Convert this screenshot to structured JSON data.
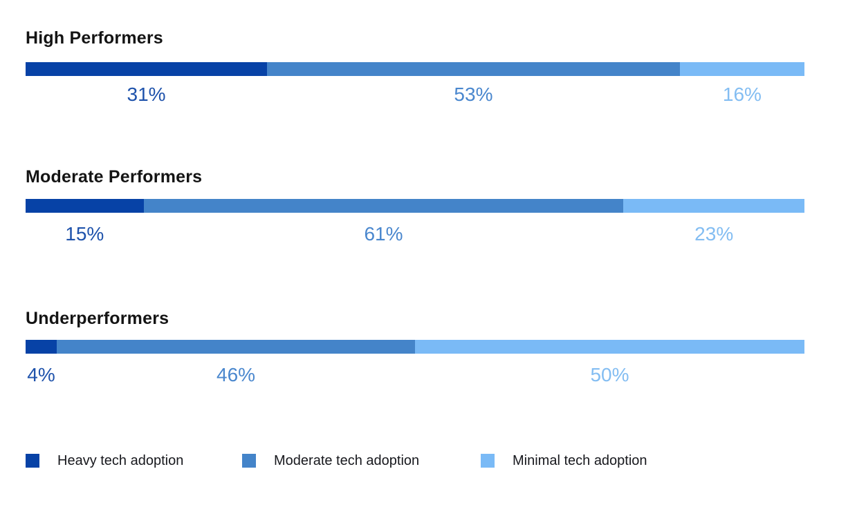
{
  "chart_data": {
    "type": "bar",
    "variant": "horizontal-stacked",
    "unit": "%",
    "title": "",
    "grid": false,
    "legend_position": "bottom",
    "categories": [
      "High Performers",
      "Moderate Performers",
      "Underperformers"
    ],
    "series": [
      {
        "name": "Heavy tech adoption",
        "color": "#0742A6",
        "label_color": "#1E52AB",
        "values": [
          31,
          15,
          4
        ]
      },
      {
        "name": "Moderate tech adoption",
        "color": "#4484C9",
        "label_color": "#4A87CE",
        "values": [
          53,
          61,
          46
        ]
      },
      {
        "name": "Minimal tech adoption",
        "color": "#7ABAF6",
        "label_color": "#83BDF2",
        "values": [
          16,
          23,
          50
        ]
      }
    ],
    "rows": [
      {
        "title": "High Performers",
        "values": [
          31,
          53,
          16
        ],
        "labels": [
          "31%",
          "53%",
          "16%"
        ]
      },
      {
        "title": "Moderate Performers",
        "values": [
          15,
          61,
          23
        ],
        "labels": [
          "15%",
          "61%",
          "23%"
        ]
      },
      {
        "title": "Underperformers",
        "values": [
          4,
          46,
          50
        ],
        "labels": [
          "4%",
          "46%",
          "50%"
        ]
      }
    ],
    "legend": [
      {
        "label": "Heavy tech adoption",
        "color": "#0742A6"
      },
      {
        "label": "Moderate tech adoption",
        "color": "#4484C9"
      },
      {
        "label": "Minimal tech adoption",
        "color": "#7ABAF6"
      }
    ]
  }
}
